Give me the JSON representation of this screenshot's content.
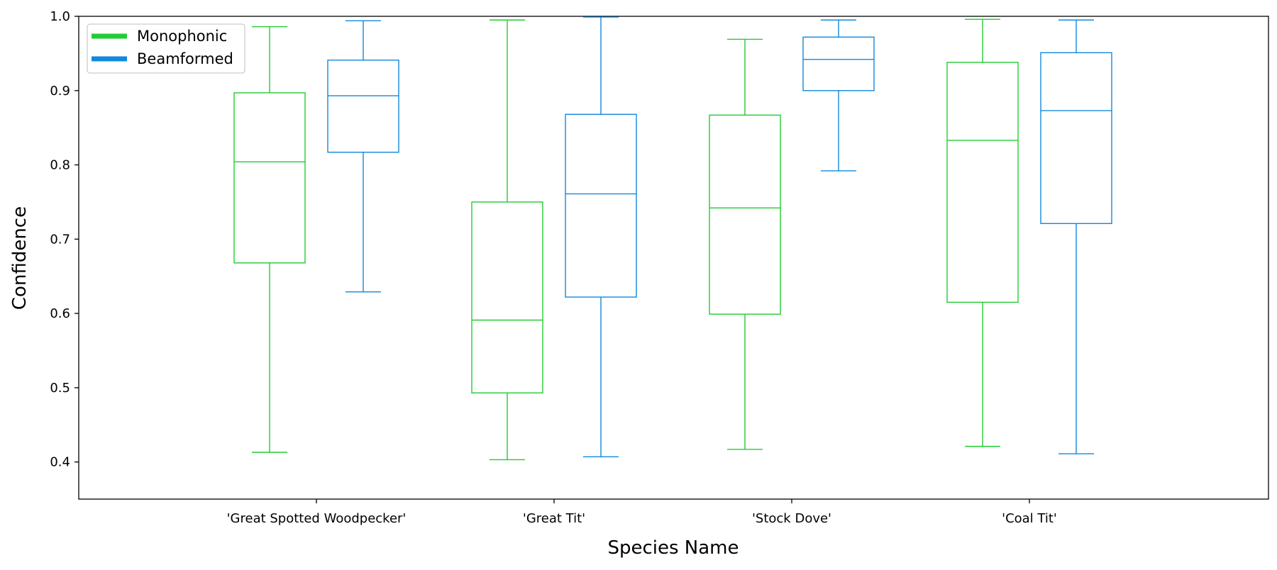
{
  "chart_data": {
    "type": "box",
    "title": "",
    "xlabel": "Species Name",
    "ylabel": "Confidence",
    "ylim": [
      0.35,
      1.0
    ],
    "yticks": [
      0.4,
      0.5,
      0.6,
      0.7,
      0.8,
      0.9,
      1.0
    ],
    "ytick_labels": [
      "0.4",
      "0.5",
      "0.6",
      "0.7",
      "0.8",
      "0.9",
      "1.0"
    ],
    "categories": [
      "'Great Spotted Woodpecker'",
      "'Great Tit'",
      "'Stock Dove'",
      "'Coal Tit'"
    ],
    "grid": false,
    "legend": "top-left",
    "series": [
      {
        "name": "Monophonic",
        "color": "#22cc33",
        "boxes": [
          {
            "whisker_low": 0.413,
            "q1": 0.668,
            "median": 0.804,
            "q3": 0.897,
            "whisker_high": 0.986
          },
          {
            "whisker_low": 0.403,
            "q1": 0.493,
            "median": 0.591,
            "q3": 0.75,
            "whisker_high": 0.995
          },
          {
            "whisker_low": 0.417,
            "q1": 0.599,
            "median": 0.742,
            "q3": 0.867,
            "whisker_high": 0.969
          },
          {
            "whisker_low": 0.421,
            "q1": 0.615,
            "median": 0.833,
            "q3": 0.938,
            "whisker_high": 0.996
          }
        ]
      },
      {
        "name": "Beamformed",
        "color": "#1188dd",
        "boxes": [
          {
            "whisker_low": 0.629,
            "q1": 0.817,
            "median": 0.893,
            "q3": 0.941,
            "whisker_high": 0.994
          },
          {
            "whisker_low": 0.407,
            "q1": 0.622,
            "median": 0.761,
            "q3": 0.868,
            "whisker_high": 0.999
          },
          {
            "whisker_low": 0.792,
            "q1": 0.9,
            "median": 0.942,
            "q3": 0.972,
            "whisker_high": 0.995
          },
          {
            "whisker_low": 0.411,
            "q1": 0.721,
            "median": 0.873,
            "q3": 0.951,
            "whisker_high": 0.995
          }
        ]
      }
    ]
  }
}
